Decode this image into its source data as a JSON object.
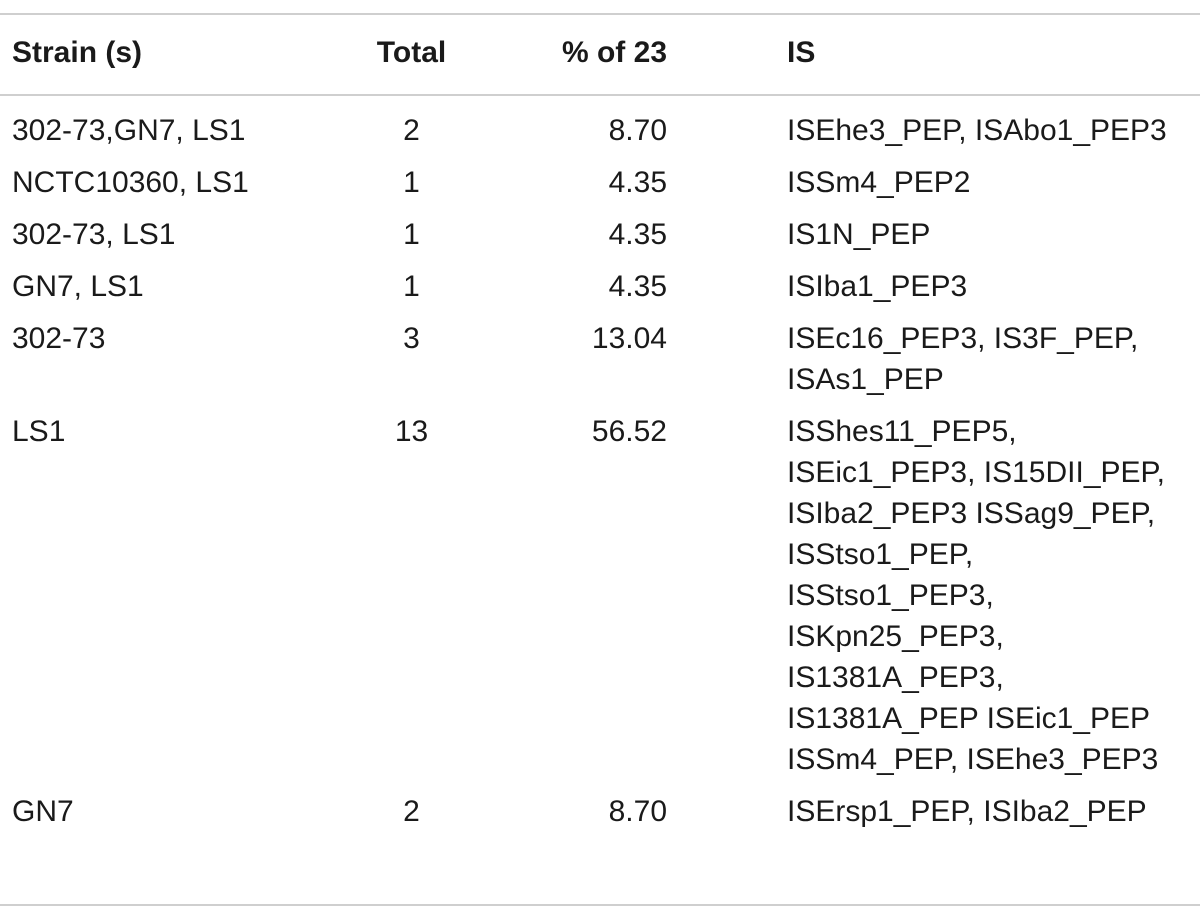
{
  "table": {
    "headers": {
      "strain": "Strain (s)",
      "total": "Total",
      "pct": "% of 23",
      "is": "IS"
    },
    "rows": [
      {
        "strain": "302-73,GN7, LS1",
        "total": "2",
        "pct": "8.70",
        "is_lines": [
          "ISEhe3_PEP, ISAbo1_PEP3"
        ]
      },
      {
        "strain": "NCTC10360, LS1",
        "total": "1",
        "pct": "4.35",
        "is_lines": [
          "ISSm4_PEP2"
        ]
      },
      {
        "strain": "302-73, LS1",
        "total": "1",
        "pct": "4.35",
        "is_lines": [
          "IS1N_PEP"
        ]
      },
      {
        "strain": "GN7, LS1",
        "total": "1",
        "pct": "4.35",
        "is_lines": [
          "ISIba1_PEP3"
        ]
      },
      {
        "strain": "302-73",
        "total": "3",
        "pct": "13.04",
        "is_lines": [
          "ISEc16_PEP3, IS3F_PEP,",
          "ISAs1_PEP"
        ]
      },
      {
        "strain": "LS1",
        "total": "13",
        "pct": "56.52",
        "is_lines": [
          "ISShes11_PEP5,",
          "ISEic1_PEP3, IS15DII_PEP,",
          "ISIba2_PEP3 ISSag9_PEP,",
          "ISStso1_PEP,",
          "ISStso1_PEP3,",
          "ISKpn25_PEP3,",
          "IS1381A_PEP3,",
          "IS1381A_PEP ISEic1_PEP",
          "ISSm4_PEP, ISEhe3_PEP3"
        ]
      },
      {
        "strain": "GN7",
        "total": "2",
        "pct": "8.70",
        "is_lines": [
          "ISErsp1_PEP, ISIba2_PEP"
        ]
      }
    ]
  }
}
